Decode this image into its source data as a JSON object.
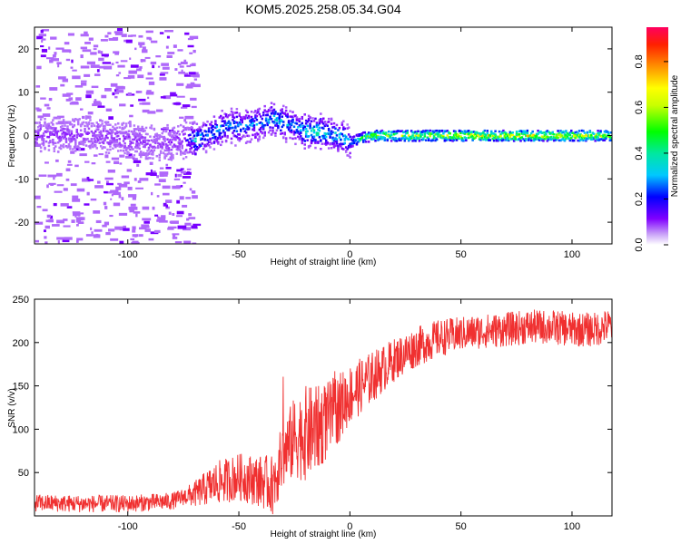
{
  "title": "KOM5.2025.258.05.34.G04",
  "colors": {
    "snr_line": "#f03030",
    "frame": "#000000"
  },
  "chart_data": [
    {
      "type": "heatmap",
      "name": "spectrogram",
      "xlabel": "Height of straight line (km)",
      "ylabel": "Frequency (Hz)",
      "xlim": [
        -142,
        118
      ],
      "ylim": [
        -25,
        25
      ],
      "xticks": [
        -100,
        -50,
        0,
        50,
        100
      ],
      "yticks": [
        -20,
        -10,
        0,
        10,
        20
      ],
      "colorbar": {
        "label": "Normalized spectral amplitude",
        "range": [
          0,
          0.95
        ],
        "ticks": [
          0.0,
          0.2,
          0.4,
          0.6,
          0.8
        ]
      },
      "ridge": {
        "x": [
          -142,
          -120,
          -100,
          -85,
          -75,
          -70,
          -65,
          -60,
          -55,
          -50,
          -45,
          -40,
          -35,
          -30,
          -25,
          -20,
          -15,
          -10,
          -5,
          0,
          5,
          10,
          20,
          40,
          60,
          80,
          100,
          118
        ],
        "freq": [
          0,
          0.5,
          -1,
          -2,
          -1,
          -1,
          0,
          1.5,
          2.5,
          2,
          2.5,
          3,
          4,
          3,
          2,
          1,
          1,
          0.5,
          0,
          -1.5,
          -0.5,
          0,
          0,
          0,
          0,
          0,
          0,
          0
        ],
        "amplitude": [
          0.1,
          0.1,
          0.1,
          0.08,
          0.12,
          0.4,
          0.3,
          0.35,
          0.3,
          0.3,
          0.3,
          0.3,
          0.35,
          0.35,
          0.3,
          0.4,
          0.45,
          0.35,
          0.4,
          0.3,
          0.5,
          0.6,
          0.65,
          0.7,
          0.75,
          0.75,
          0.7,
          0.65
        ]
      }
    },
    {
      "type": "line",
      "name": "snr",
      "xlabel": "Height of straight line (km)",
      "ylabel": "SNR (v/v)",
      "xlim": [
        -142,
        118
      ],
      "ylim": [
        0,
        250
      ],
      "xticks": [
        -100,
        -50,
        0,
        50,
        100
      ],
      "yticks": [
        50,
        100,
        150,
        200,
        250
      ],
      "trend": {
        "x": [
          -142,
          -120,
          -100,
          -80,
          -75,
          -70,
          -60,
          -50,
          -40,
          -35,
          -30,
          -25,
          -20,
          -15,
          -10,
          -5,
          0,
          10,
          20,
          30,
          40,
          50,
          60,
          70,
          80,
          90,
          100,
          110,
          118
        ],
        "y": [
          15,
          14,
          14,
          17,
          22,
          25,
          38,
          45,
          40,
          35,
          70,
          90,
          95,
          100,
          110,
          125,
          140,
          160,
          180,
          195,
          205,
          210,
          213,
          215,
          218,
          218,
          215,
          215,
          220
        ]
      },
      "noise_amplitude": {
        "x": [
          -142,
          -75,
          -60,
          -40,
          -30,
          -20,
          -10,
          0,
          20,
          50,
          118
        ],
        "y": [
          10,
          10,
          25,
          30,
          40,
          55,
          45,
          35,
          25,
          20,
          20
        ]
      }
    }
  ]
}
